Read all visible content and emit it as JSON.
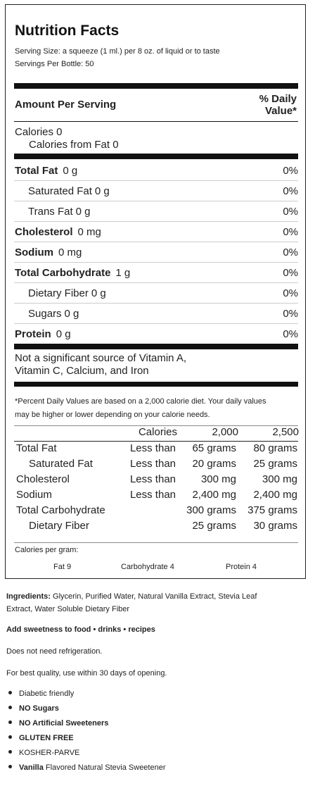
{
  "label": {
    "title": "Nutrition Facts",
    "serving_size": "Serving Size: a squeeze (1 ml.) per 8 oz. of liquid or to taste",
    "servings_per_bottle": "Servings Per Bottle: 50",
    "amount_per_serving": "Amount Per Serving",
    "daily_value_header_1": "% Daily",
    "daily_value_header_2": "Value*",
    "calories": "Calories 0",
    "calories_from_fat": "Calories from Fat 0",
    "rows": [
      {
        "name": "Total Fat",
        "amount": "0 g",
        "dv": "0%",
        "bold": true
      },
      {
        "name": "Saturated Fat",
        "amount": "0 g",
        "dv": "0%",
        "bold": false
      },
      {
        "name": "Trans Fat",
        "amount": "0 g",
        "dv": "0%",
        "bold": false
      },
      {
        "name": "Cholesterol",
        "amount": "0 mg",
        "dv": "0%",
        "bold": true
      },
      {
        "name": "Sodium",
        "amount": "0 mg",
        "dv": "0%",
        "bold": true
      },
      {
        "name": "Total Carbohydrate",
        "amount": "1 g",
        "dv": "0%",
        "bold": true
      },
      {
        "name": "Dietary Fiber",
        "amount": "0 g",
        "dv": "0%",
        "bold": false
      },
      {
        "name": "Sugars",
        "amount": "0 g",
        "dv": "0%",
        "bold": false
      },
      {
        "name": "Protein",
        "amount": "0 g",
        "dv": "0%",
        "bold": true
      }
    ],
    "vitamin_note_1": "Not a significant source of Vitamin A,",
    "vitamin_note_2": "Vitamin C, Calcium, and Iron",
    "footnote_1": "*Percent Daily Values are based on a 2,000 calorie diet. Your daily values",
    "footnote_2": "may be higher or lower depending on your calorie needs.",
    "dv_table": {
      "header": [
        "",
        "",
        "Calories",
        "2,000",
        "2,500"
      ],
      "rows": [
        [
          "Total Fat",
          "Less than",
          "65 grams",
          "80 grams"
        ],
        [
          "Saturated Fat",
          "Less than",
          "20 grams",
          "25 grams"
        ],
        [
          "Cholesterol",
          "Less than",
          "300 mg",
          "300 mg"
        ],
        [
          "Sodium",
          "Less than",
          "2,400 mg",
          "2,400 mg"
        ],
        [
          "Total Carbohydrate",
          "",
          "300 grams",
          "375 grams"
        ],
        [
          "Dietary Fiber",
          "",
          "25 grams",
          "30 grams"
        ]
      ]
    },
    "calories_per_gram": "Calories per gram:",
    "cpg_fat": "Fat 9",
    "cpg_carb": "Carbohydrate 4",
    "cpg_protein": "Protein 4"
  },
  "below": {
    "ingredients_label": "Ingredients:",
    "ingredients_1": " Glycerin, Purified Water, Natural Vanilla Extract, Stevia Leaf",
    "ingredients_2": "Extract, Water Soluble Dietary Fiber",
    "tagline": "Add sweetness to food • drinks • recipes",
    "refrigeration": "Does not need refrigeration.",
    "best_quality": "For best quality, use within 30 days of opening.",
    "features": [
      {
        "bold": "",
        "text": "Diabetic friendly"
      },
      {
        "bold": "NO Sugars",
        "text": ""
      },
      {
        "bold": "NO Artificial Sweeteners",
        "text": ""
      },
      {
        "bold": "GLUTEN FREE",
        "text": ""
      },
      {
        "bold": "",
        "text": "KOSHER-PARVE"
      },
      {
        "bold": "Vanilla",
        "text": " Flavored Natural Stevia Sweetener"
      }
    ]
  }
}
